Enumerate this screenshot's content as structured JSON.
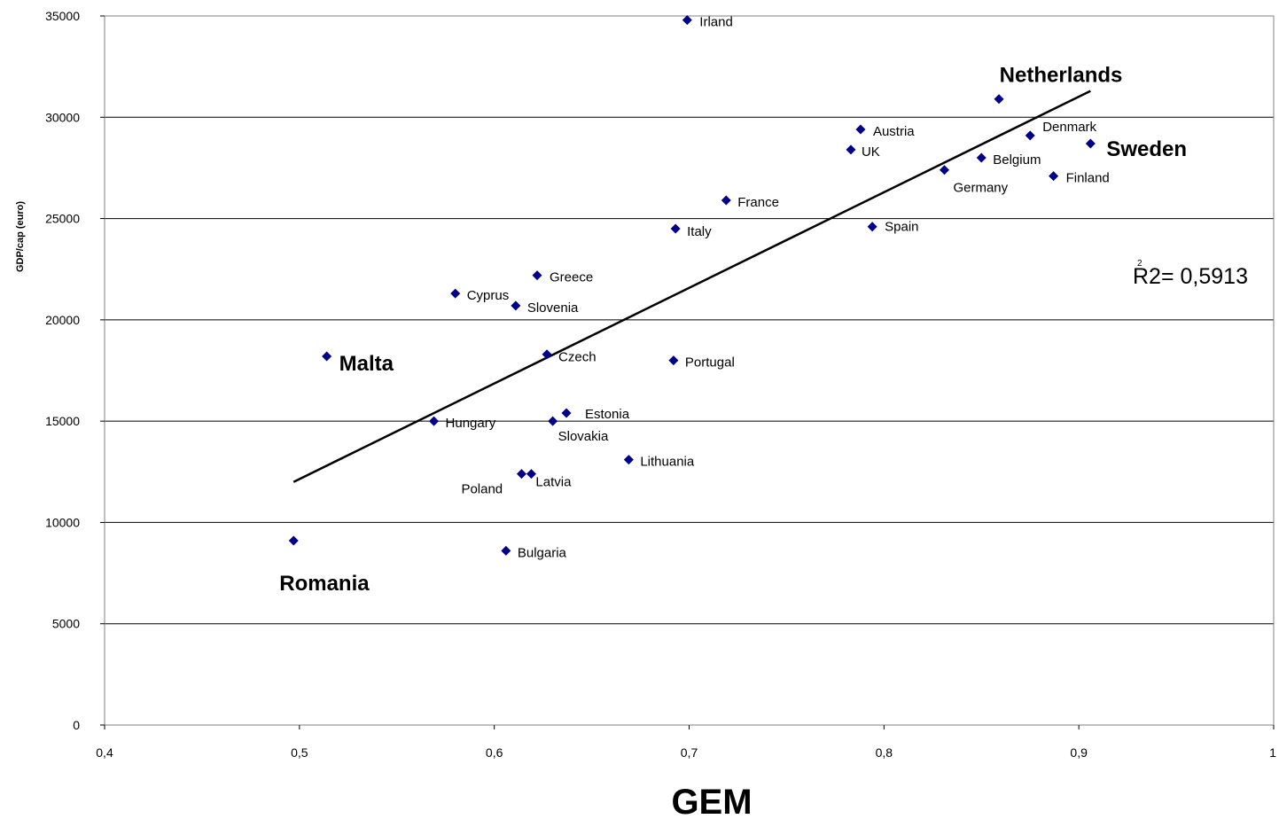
{
  "chart_data": {
    "type": "scatter",
    "xlabel": "GEM",
    "ylabel": "GDP/cap (euro)",
    "xlim": [
      0.4,
      1
    ],
    "ylim": [
      0,
      35000
    ],
    "x_ticks": [
      "0,4",
      "0,5",
      "0,6",
      "0,7",
      "0,8",
      "0,9",
      "1"
    ],
    "y_ticks": [
      "0",
      "5000",
      "10000",
      "15000",
      "20000",
      "25000",
      "30000",
      "35000"
    ],
    "grid": "horizontal",
    "marker_color": "#00008B",
    "points": [
      {
        "label": "Irland",
        "x": 0.699,
        "y": 34800,
        "emph": false
      },
      {
        "label": "Netherlands",
        "x": 0.859,
        "y": 30900,
        "emph": true
      },
      {
        "label": "Austria",
        "x": 0.788,
        "y": 29400,
        "emph": false
      },
      {
        "label": "Denmark",
        "x": 0.875,
        "y": 29100,
        "emph": false
      },
      {
        "label": "Sweden",
        "x": 0.906,
        "y": 28700,
        "emph": true
      },
      {
        "label": "UK",
        "x": 0.783,
        "y": 28400,
        "emph": false
      },
      {
        "label": "Belgium",
        "x": 0.85,
        "y": 28000,
        "emph": false
      },
      {
        "label": "Germany",
        "x": 0.831,
        "y": 27400,
        "emph": false
      },
      {
        "label": "Finland",
        "x": 0.887,
        "y": 27100,
        "emph": false
      },
      {
        "label": "France",
        "x": 0.719,
        "y": 25900,
        "emph": false
      },
      {
        "label": "Spain",
        "x": 0.794,
        "y": 24600,
        "emph": false
      },
      {
        "label": "Italy",
        "x": 0.693,
        "y": 24500,
        "emph": false
      },
      {
        "label": "Greece",
        "x": 0.622,
        "y": 22200,
        "emph": false
      },
      {
        "label": "Cyprus",
        "x": 0.58,
        "y": 21300,
        "emph": false
      },
      {
        "label": "Slovenia",
        "x": 0.611,
        "y": 20700,
        "emph": false
      },
      {
        "label": "Czech",
        "x": 0.627,
        "y": 18300,
        "emph": false
      },
      {
        "label": "Malta",
        "x": 0.514,
        "y": 18200,
        "emph": true
      },
      {
        "label": "Portugal",
        "x": 0.692,
        "y": 18000,
        "emph": false
      },
      {
        "label": "Estonia",
        "x": 0.637,
        "y": 15400,
        "emph": false
      },
      {
        "label": "Hungary",
        "x": 0.569,
        "y": 15000,
        "emph": false
      },
      {
        "label": "Slovakia",
        "x": 0.63,
        "y": 15000,
        "emph": false
      },
      {
        "label": "Lithuania",
        "x": 0.669,
        "y": 13100,
        "emph": false
      },
      {
        "label": "Poland",
        "x": 0.614,
        "y": 12400,
        "emph": false
      },
      {
        "label": "Latvia",
        "x": 0.619,
        "y": 12400,
        "emph": false
      },
      {
        "label": "Romania",
        "x": 0.497,
        "y": 9100,
        "emph": true
      },
      {
        "label": "Bulgaria",
        "x": 0.606,
        "y": 8600,
        "emph": false
      }
    ],
    "trendline": {
      "x": [
        0.497,
        0.906
      ],
      "y": [
        12000,
        31300
      ],
      "color": "#000000"
    },
    "annotation": {
      "text": "R2= 0,5913",
      "sup": "2"
    }
  }
}
